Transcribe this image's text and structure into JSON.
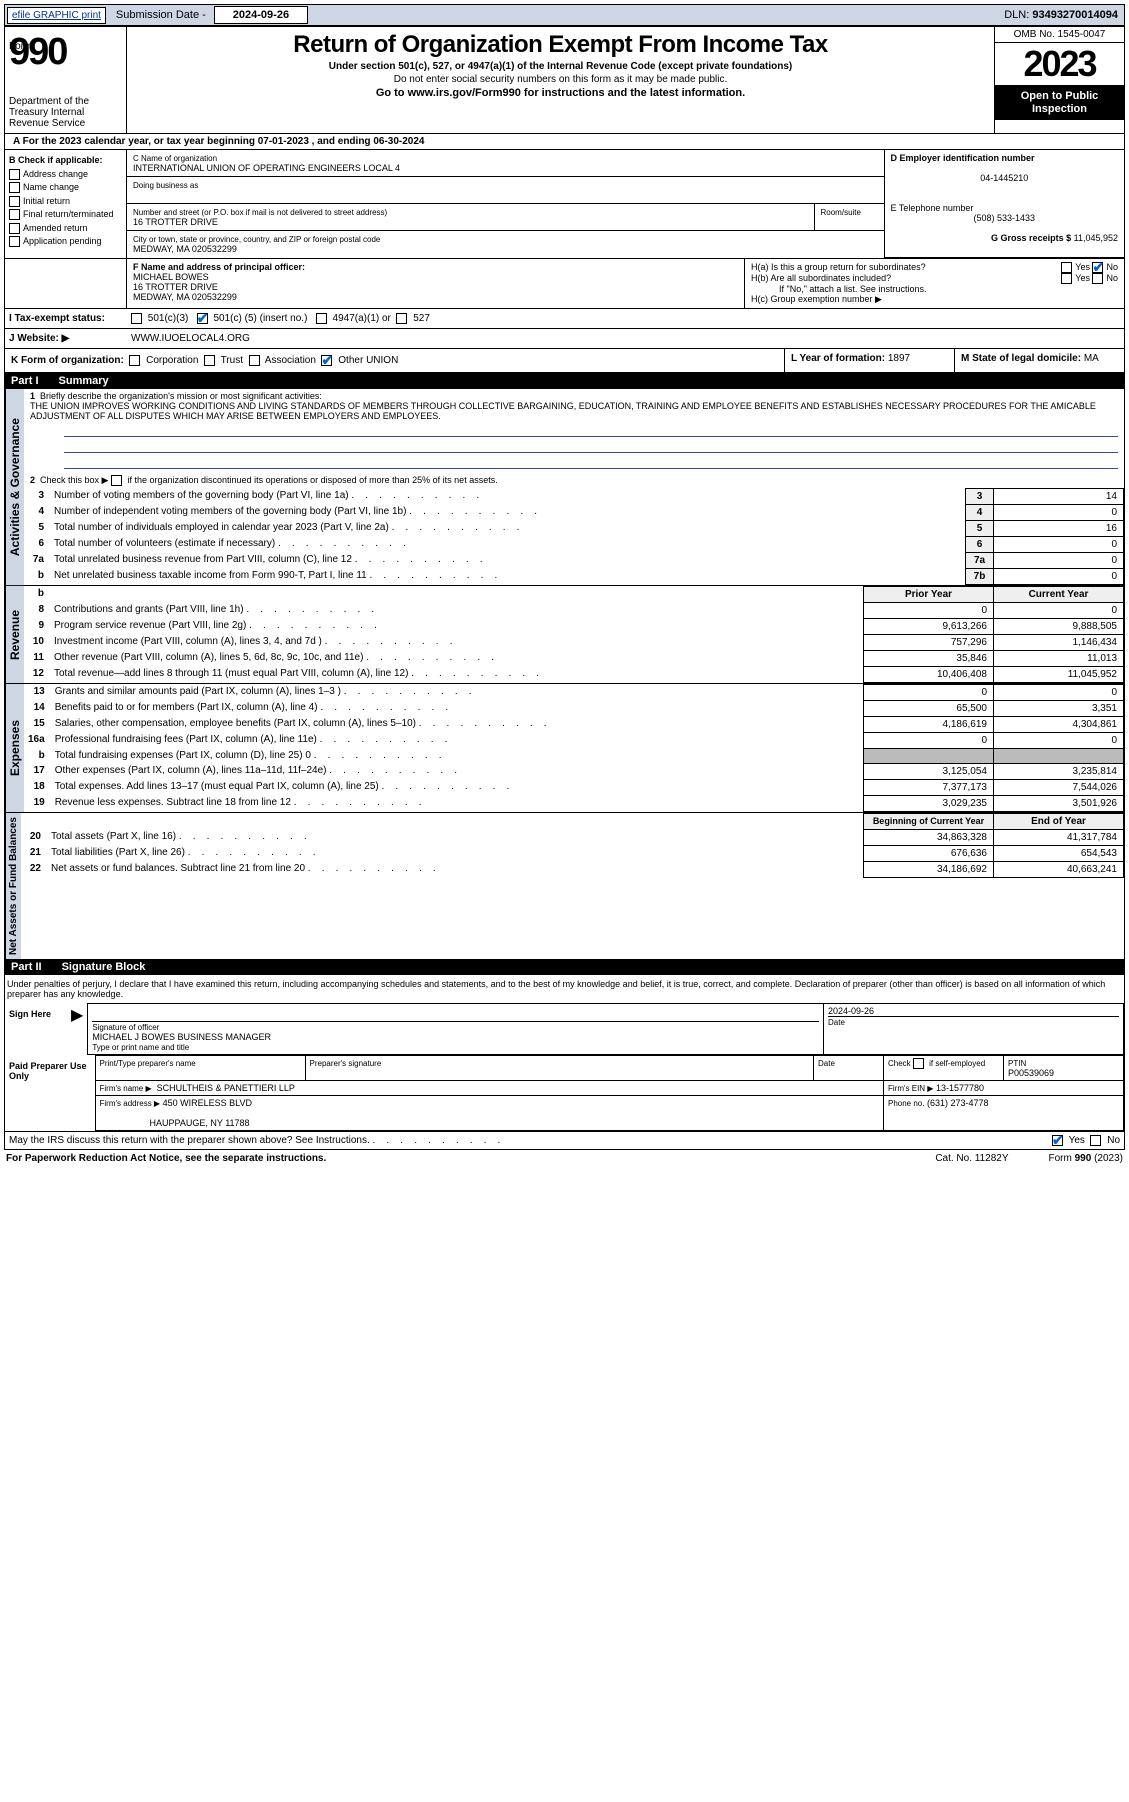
{
  "topbar": {
    "efile": "efile GRAPHIC print",
    "sub_label": "Submission Date -",
    "sub_date": "2024-09-26",
    "dln_label": "DLN:",
    "dln": "93493270014094"
  },
  "header": {
    "form_word": "Form",
    "form_num": "990",
    "dept": "Department of the Treasury Internal Revenue Service",
    "title": "Return of Organization Exempt From Income Tax",
    "sub1": "Under section 501(c), 527, or 4947(a)(1) of the Internal Revenue Code (except private foundations)",
    "sub2": "Do not enter social security numbers on this form as it may be made public.",
    "go": "Go to www.irs.gov/Form990 for instructions and the latest information.",
    "omb": "OMB No. 1545-0047",
    "year": "2023",
    "inspect1": "Open to Public",
    "inspect2": "Inspection"
  },
  "lineA": "A For the 2023 calendar year, or tax year beginning 07-01-2023   , and ending 06-30-2024",
  "boxB": {
    "label": "B Check if applicable:",
    "items": [
      "Address change",
      "Name change",
      "Initial return",
      "Final return/terminated",
      "Amended return",
      "Application pending"
    ]
  },
  "boxC": {
    "label": "C Name of organization",
    "name": "INTERNATIONAL UNION OF OPERATING ENGINEERS LOCAL 4",
    "dba_label": "Doing business as",
    "addr_label": "Number and street (or P.O. box if mail is not delivered to street address)",
    "room_label": "Room/suite",
    "addr": "16 TROTTER DRIVE",
    "city_label": "City or town, state or province, country, and ZIP or foreign postal code",
    "city": "MEDWAY, MA  020532299"
  },
  "boxD": {
    "label": "D Employer identification number",
    "val": "04-1445210"
  },
  "boxE": {
    "label": "E Telephone number",
    "val": "(508) 533-1433"
  },
  "boxG": {
    "label": "G Gross receipts $",
    "val": "11,045,952"
  },
  "boxF": {
    "label": "F Name and address of principal officer:",
    "name": "MICHAEL BOWES",
    "addr1": "16 TROTTER DRIVE",
    "addr2": "MEDWAY, MA  020532299"
  },
  "boxH": {
    "a": "H(a)  Is this a group return for subordinates?",
    "b": "H(b)  Are all subordinates included?",
    "b_note": "If \"No,\" attach a list. See instructions.",
    "c": "H(c)  Group exemption number  ▶",
    "yes": "Yes",
    "no": "No"
  },
  "taxStatus": {
    "label": "I   Tax-exempt status:",
    "opt1": "501(c)(3)",
    "opt2_pre": "501(c) (",
    "opt2_val": "5",
    "opt2_post": ") (insert no.)",
    "opt3": "4947(a)(1) or",
    "opt4": "527"
  },
  "website": {
    "label": "J   Website:  ▶",
    "val": "WWW.IUOELOCAL4.ORG"
  },
  "formOrg": {
    "label": "K Form of organization:",
    "opts": [
      "Corporation",
      "Trust",
      "Association",
      "Other"
    ],
    "other_val": "UNION"
  },
  "boxL": {
    "label": "L Year of formation:",
    "val": "1897"
  },
  "boxM": {
    "label": "M State of legal domicile:",
    "val": "MA"
  },
  "part1": {
    "label": "Part I",
    "title": "Summary",
    "side1": "Activities & Governance",
    "side2": "Revenue",
    "side3": "Expenses",
    "side4": "Net Assets or Fund Balances",
    "q1": "Briefly describe the organization's mission or most significant activities:",
    "mission": "THE UNION IMPROVES WORKING CONDITIONS AND LIVING STANDARDS OF MEMBERS THROUGH COLLECTIVE BARGAINING, EDUCATION, TRAINING AND EMPLOYEE BENEFITS AND ESTABLISHES NECESSARY PROCEDURES FOR THE AMICABLE ADJUSTMENT OF ALL DISPUTES WHICH MAY ARISE BETWEEN EMPLOYERS AND EMPLOYEES.",
    "q2": "Check this box ▶         if the organization discontinued its operations or disposed of more than 25% of its net assets.",
    "rows_gov": [
      {
        "n": "3",
        "t": "Number of voting members of the governing body (Part VI, line 1a)",
        "ln": "3",
        "v": "14"
      },
      {
        "n": "4",
        "t": "Number of independent voting members of the governing body (Part VI, line 1b)",
        "ln": "4",
        "v": "0"
      },
      {
        "n": "5",
        "t": "Total number of individuals employed in calendar year 2023 (Part V, line 2a)",
        "ln": "5",
        "v": "16"
      },
      {
        "n": "6",
        "t": "Total number of volunteers (estimate if necessary)",
        "ln": "6",
        "v": "0"
      },
      {
        "n": "7a",
        "t": "Total unrelated business revenue from Part VIII, column (C), line 12",
        "ln": "7a",
        "v": "0"
      },
      {
        "n": "b",
        "t": "Net unrelated business taxable income from Form 990-T, Part I, line 11",
        "ln": "7b",
        "v": "0"
      }
    ],
    "prior_hdr": "Prior Year",
    "curr_hdr": "Current Year",
    "rows_rev": [
      {
        "n": "8",
        "t": "Contributions and grants (Part VIII, line 1h)",
        "p": "0",
        "c": "0"
      },
      {
        "n": "9",
        "t": "Program service revenue (Part VIII, line 2g)",
        "p": "9,613,266",
        "c": "9,888,505"
      },
      {
        "n": "10",
        "t": "Investment income (Part VIII, column (A), lines 3, 4, and 7d )",
        "p": "757,296",
        "c": "1,146,434"
      },
      {
        "n": "11",
        "t": "Other revenue (Part VIII, column (A), lines 5, 6d, 8c, 9c, 10c, and 11e)",
        "p": "35,846",
        "c": "11,013"
      },
      {
        "n": "12",
        "t": "Total revenue—add lines 8 through 11 (must equal Part VIII, column (A), line 12)",
        "p": "10,406,408",
        "c": "11,045,952"
      }
    ],
    "rows_exp": [
      {
        "n": "13",
        "t": "Grants and similar amounts paid (Part IX, column (A), lines 1–3 )",
        "p": "0",
        "c": "0"
      },
      {
        "n": "14",
        "t": "Benefits paid to or for members (Part IX, column (A), line 4)",
        "p": "65,500",
        "c": "3,351"
      },
      {
        "n": "15",
        "t": "Salaries, other compensation, employee benefits (Part IX, column (A), lines 5–10)",
        "p": "4,186,619",
        "c": "4,304,861"
      },
      {
        "n": "16a",
        "t": "Professional fundraising fees (Part IX, column (A), line 11e)",
        "p": "0",
        "c": "0"
      },
      {
        "n": "b",
        "t": "Total fundraising expenses (Part IX, column (D), line 25) 0",
        "p": "",
        "c": "",
        "shade": true
      },
      {
        "n": "17",
        "t": "Other expenses (Part IX, column (A), lines 11a–11d, 11f–24e)",
        "p": "3,125,054",
        "c": "3,235,814"
      },
      {
        "n": "18",
        "t": "Total expenses. Add lines 13–17 (must equal Part IX, column (A), line 25)",
        "p": "7,377,173",
        "c": "7,544,026"
      },
      {
        "n": "19",
        "t": "Revenue less expenses. Subtract line 18 from line 12",
        "p": "3,029,235",
        "c": "3,501,926"
      }
    ],
    "beg_hdr": "Beginning of Current Year",
    "end_hdr": "End of Year",
    "rows_net": [
      {
        "n": "20",
        "t": "Total assets (Part X, line 16)",
        "p": "34,863,328",
        "c": "41,317,784"
      },
      {
        "n": "21",
        "t": "Total liabilities (Part X, line 26)",
        "p": "676,636",
        "c": "654,543"
      },
      {
        "n": "22",
        "t": "Net assets or fund balances. Subtract line 21 from line 20",
        "p": "34,186,692",
        "c": "40,663,241"
      }
    ]
  },
  "part2": {
    "label": "Part II",
    "title": "Signature Block",
    "perjury": "Under penalties of perjury, I declare that I have examined this return, including accompanying schedules and statements, and to the best of my knowledge and belief, it is true, correct, and complete. Declaration of preparer (other than officer) is based on all information of which preparer has any knowledge.",
    "sign_here": "Sign Here",
    "sig_label": "Signature of officer",
    "date_label": "Date",
    "sig_date": "2024-09-26",
    "officer": "MICHAEL J BOWES BUSINESS MANAGER",
    "officer_label": "Type or print name and title",
    "paid": "Paid Preparer Use Only",
    "prep_name_label": "Print/Type preparer's name",
    "prep_sig_label": "Preparer's signature",
    "prep_date_label": "Date",
    "check_self": "Check          if self-employed",
    "ptin_label": "PTIN",
    "ptin": "P00539069",
    "firm_name_label": "Firm's name     ▶",
    "firm_name": "SCHULTHEIS & PANETTIERI LLP",
    "firm_ein_label": "Firm's EIN  ▶",
    "firm_ein": "13-1577780",
    "firm_addr_label": "Firm's address ▶",
    "firm_addr1": "450 WIRELESS BLVD",
    "firm_addr2": "HAUPPAUGE, NY  11788",
    "phone_label": "Phone no.",
    "phone": "(631) 273-4778",
    "discuss": "May the IRS discuss this return with the preparer shown above? See Instructions."
  },
  "footer": {
    "left": "For Paperwork Reduction Act Notice, see the separate instructions.",
    "mid": "Cat. No. 11282Y",
    "right": "Form 990 (2023)"
  }
}
